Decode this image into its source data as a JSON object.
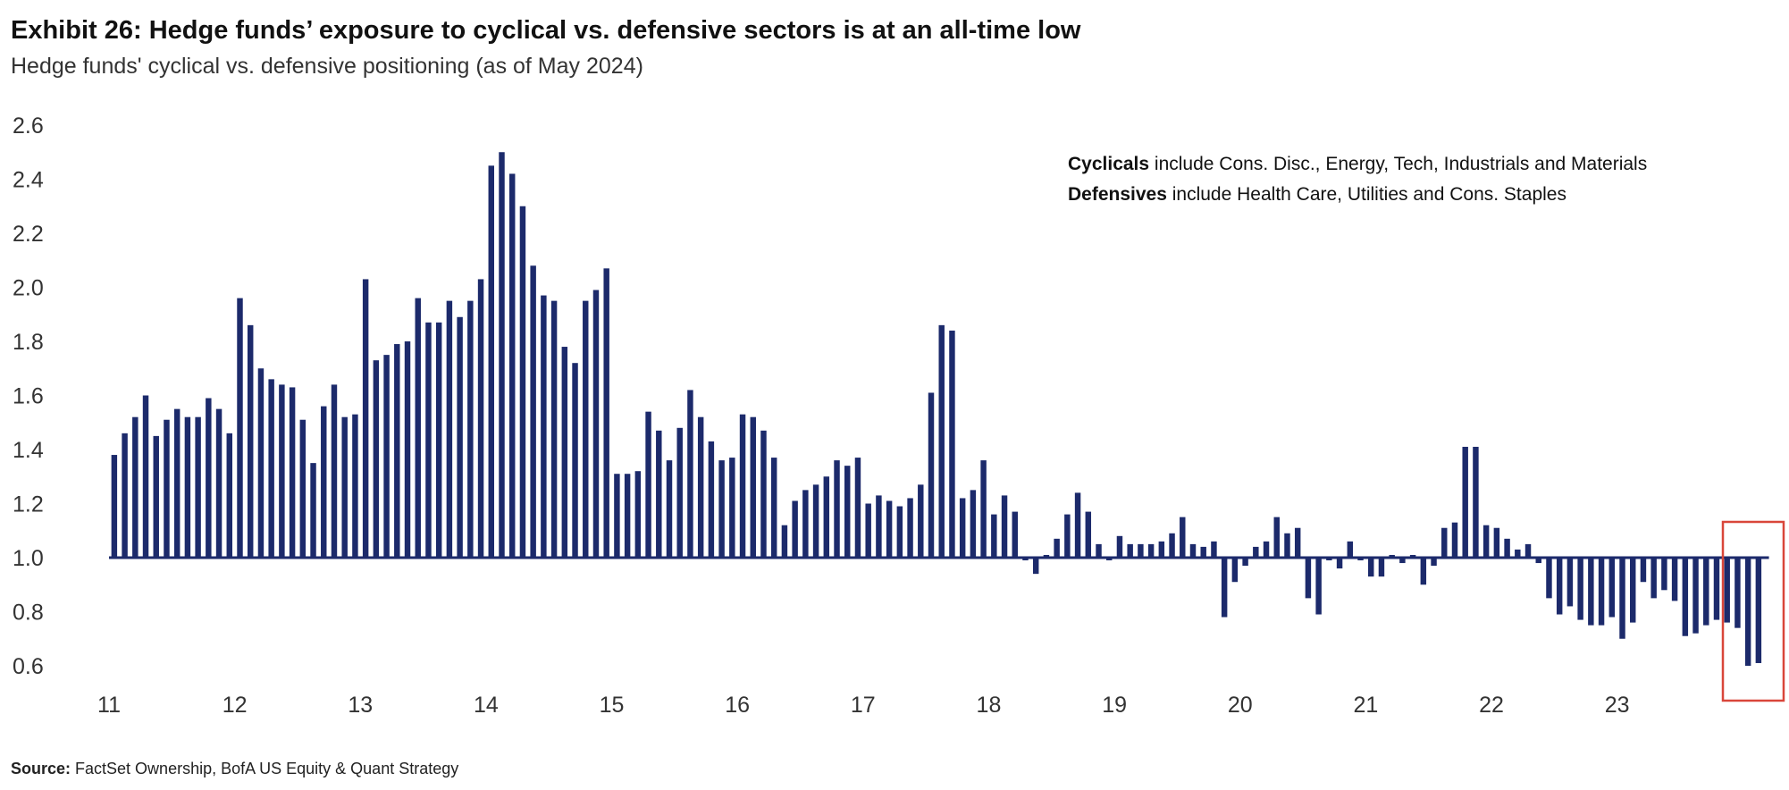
{
  "title": "Exhibit 26: Hedge funds’ exposure to cyclical vs. defensive sectors is at an all-time low",
  "subtitle": "Hedge funds' cyclical vs. defensive positioning (as of May 2024)",
  "annotation": {
    "line1_bold": "Cyclicals",
    "line1_rest": " include Cons. Disc., Energy, Tech, Industrials and Materials",
    "line2_bold": "Defensives",
    "line2_rest": " include Health Care, Utilities and Cons. Staples"
  },
  "source": {
    "label": "Source:",
    "text": " FactSet Ownership, BofA US Equity & Quant Strategy"
  },
  "colors": {
    "bar": "#1c2a6b",
    "axis": "#1c2a6b",
    "highlight_box": "#d9463a"
  },
  "chart_data": {
    "type": "bar",
    "baseline": 1.0,
    "ylim": [
      0.6,
      2.6
    ],
    "yticks": [
      "2.6",
      "2.4",
      "2.2",
      "2.0",
      "1.8",
      "1.6",
      "1.4",
      "1.2",
      "1.0",
      "0.8",
      "0.6"
    ],
    "xticks": [
      "11",
      "12",
      "13",
      "14",
      "15",
      "16",
      "17",
      "18",
      "19",
      "20",
      "21",
      "22",
      "23"
    ],
    "x_start_year": 11,
    "highlight": "last 3 months (latest readings)",
    "values": [
      1.38,
      1.46,
      1.52,
      1.6,
      1.45,
      1.51,
      1.55,
      1.52,
      1.52,
      1.59,
      1.55,
      1.46,
      1.96,
      1.86,
      1.7,
      1.66,
      1.64,
      1.63,
      1.51,
      1.35,
      1.56,
      1.64,
      1.52,
      1.53,
      2.03,
      1.73,
      1.75,
      1.79,
      1.8,
      1.96,
      1.87,
      1.87,
      1.95,
      1.89,
      1.95,
      2.03,
      2.45,
      2.5,
      2.42,
      2.3,
      2.08,
      1.97,
      1.95,
      1.78,
      1.72,
      1.95,
      1.99,
      2.07,
      1.31,
      1.31,
      1.32,
      1.54,
      1.47,
      1.36,
      1.48,
      1.62,
      1.52,
      1.43,
      1.36,
      1.37,
      1.53,
      1.52,
      1.47,
      1.37,
      1.12,
      1.21,
      1.25,
      1.27,
      1.3,
      1.36,
      1.34,
      1.37,
      1.2,
      1.23,
      1.21,
      1.19,
      1.22,
      1.27,
      1.61,
      1.86,
      1.84,
      1.22,
      1.25,
      1.36,
      1.16,
      1.23,
      1.17,
      0.99,
      0.94,
      1.01,
      1.07,
      1.16,
      1.24,
      1.17,
      1.05,
      0.99,
      1.08,
      1.05,
      1.05,
      1.05,
      1.06,
      1.09,
      1.15,
      1.05,
      1.04,
      1.06,
      0.78,
      0.91,
      0.97,
      1.04,
      1.06,
      1.15,
      1.09,
      1.11,
      0.85,
      0.79,
      0.99,
      0.96,
      1.06,
      0.99,
      0.93,
      0.93,
      1.01,
      0.98,
      1.01,
      0.9,
      0.97,
      1.11,
      1.13,
      1.41,
      1.41,
      1.12,
      1.11,
      1.07,
      1.03,
      1.05,
      0.98,
      0.85,
      0.79,
      0.82,
      0.77,
      0.75,
      0.75,
      0.78,
      0.7,
      0.76,
      0.91,
      0.85,
      0.88,
      0.84,
      0.71,
      0.72,
      0.75,
      0.77,
      0.76,
      0.74,
      0.6,
      0.61
    ]
  }
}
